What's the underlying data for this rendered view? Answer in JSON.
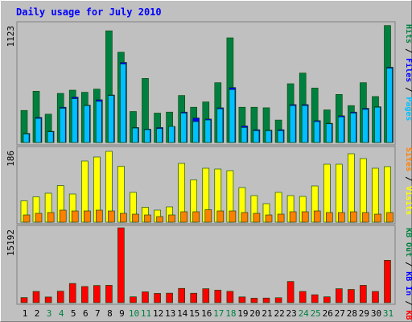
{
  "chart_data": [
    {
      "type": "bar",
      "title": "Daily usage for July 2010",
      "panel": "hits-files-pages",
      "ymax_label": "1123",
      "ylim": [
        0,
        1123
      ],
      "axis_labels": [
        {
          "text": "Hits",
          "color": "#008040"
        },
        {
          "text": "Files",
          "color": "#0000ff"
        },
        {
          "text": "Pages",
          "color": "#00c0ff"
        }
      ],
      "separator": " / ",
      "categories": [
        "1",
        "2",
        "3",
        "4",
        "5",
        "6",
        "7",
        "8",
        "9",
        "10",
        "11",
        "12",
        "13",
        "14",
        "15",
        "16",
        "17",
        "18",
        "19",
        "20",
        "21",
        "22",
        "23",
        "24",
        "25",
        "26",
        "27",
        "28",
        "29",
        "30",
        "31"
      ],
      "series": [
        {
          "name": "Hits",
          "color": "#008040",
          "values": [
            300,
            480,
            265,
            460,
            490,
            470,
            500,
            1045,
            845,
            290,
            600,
            275,
            285,
            440,
            330,
            380,
            560,
            980,
            330,
            330,
            325,
            210,
            550,
            650,
            510,
            305,
            450,
            345,
            560,
            430,
            1095
          ]
        },
        {
          "name": "Files",
          "color": "#0000ff",
          "values": [
            85,
            235,
            105,
            330,
            425,
            350,
            400,
            445,
            750,
            140,
            125,
            140,
            150,
            285,
            230,
            220,
            325,
            515,
            155,
            120,
            115,
            120,
            355,
            355,
            205,
            180,
            250,
            285,
            320,
            335,
            705
          ]
        },
        {
          "name": "Pages",
          "color": "#00c0ff",
          "values": [
            80,
            225,
            100,
            320,
            410,
            345,
            385,
            440,
            735,
            135,
            120,
            130,
            150,
            275,
            195,
            210,
            315,
            495,
            140,
            110,
            110,
            110,
            345,
            345,
            195,
            175,
            240,
            275,
            310,
            330,
            695
          ]
        }
      ]
    },
    {
      "type": "bar",
      "panel": "visits-sites",
      "ymax_label": "186",
      "ylim": [
        0,
        186
      ],
      "axis_labels": [
        {
          "text": "Visits",
          "color": "#ffff00"
        },
        {
          "text": "Sites",
          "color": "#ff8000"
        }
      ],
      "separator": " / ",
      "series": [
        {
          "name": "Visits",
          "color": "#ffff00",
          "values": [
            53,
            63,
            72,
            91,
            70,
            152,
            162,
            176,
            139,
            74,
            37,
            30,
            38,
            146,
            105,
            134,
            132,
            128,
            86,
            66,
            46,
            74,
            66,
            64,
            90,
            144,
            144,
            170,
            158,
            134,
            138
          ]
        },
        {
          "name": "Sites",
          "color": "#ff8000",
          "values": [
            18,
            22,
            24,
            30,
            28,
            28,
            30,
            28,
            22,
            20,
            18,
            14,
            18,
            26,
            26,
            31,
            28,
            28,
            24,
            22,
            18,
            20,
            26,
            26,
            28,
            24,
            24,
            26,
            24,
            20,
            24
          ]
        }
      ]
    },
    {
      "type": "bar",
      "panel": "kb",
      "ymax_label": "15192",
      "ylim": [
        0,
        15192
      ],
      "axis_labels": [
        {
          "text": "KB F",
          "color": "#ff0000"
        },
        {
          "text": "KB In",
          "color": "#0000ff"
        },
        {
          "text": "KB Out",
          "color": "#008040"
        }
      ],
      "separator": " / ",
      "series": [
        {
          "name": "KB F",
          "color": "#ff0000",
          "values": [
            1040,
            2290,
            1160,
            2330,
            3910,
            3280,
            3490,
            3530,
            15192,
            1200,
            2200,
            1900,
            1940,
            2900,
            1930,
            2840,
            2550,
            2300,
            1170,
            920,
            950,
            1020,
            4320,
            2290,
            1620,
            1190,
            2840,
            2690,
            3530,
            2290,
            8610
          ]
        }
      ]
    }
  ],
  "x_labels": [
    {
      "text": "1",
      "weekend": false
    },
    {
      "text": "2",
      "weekend": false
    },
    {
      "text": "3",
      "weekend": true
    },
    {
      "text": "4",
      "weekend": true
    },
    {
      "text": "5",
      "weekend": false
    },
    {
      "text": "6",
      "weekend": false
    },
    {
      "text": "7",
      "weekend": false
    },
    {
      "text": "8",
      "weekend": false
    },
    {
      "text": "9",
      "weekend": false
    },
    {
      "text": "10",
      "weekend": true
    },
    {
      "text": "11",
      "weekend": true
    },
    {
      "text": "12",
      "weekend": false
    },
    {
      "text": "13",
      "weekend": false
    },
    {
      "text": "14",
      "weekend": false
    },
    {
      "text": "15",
      "weekend": false
    },
    {
      "text": "16",
      "weekend": false
    },
    {
      "text": "17",
      "weekend": true
    },
    {
      "text": "18",
      "weekend": true
    },
    {
      "text": "19",
      "weekend": false
    },
    {
      "text": "20",
      "weekend": false
    },
    {
      "text": "21",
      "weekend": false
    },
    {
      "text": "22",
      "weekend": false
    },
    {
      "text": "23",
      "weekend": false
    },
    {
      "text": "24",
      "weekend": true
    },
    {
      "text": "25",
      "weekend": true
    },
    {
      "text": "26",
      "weekend": false
    },
    {
      "text": "27",
      "weekend": false
    },
    {
      "text": "28",
      "weekend": false
    },
    {
      "text": "29",
      "weekend": false
    },
    {
      "text": "30",
      "weekend": false
    },
    {
      "text": "31",
      "weekend": true
    }
  ],
  "colors": {
    "background": "#c0c0c0",
    "title": "#0000ff",
    "weekday_label": "#000000",
    "weekend_label": "#008040",
    "gridline": "#808080"
  }
}
